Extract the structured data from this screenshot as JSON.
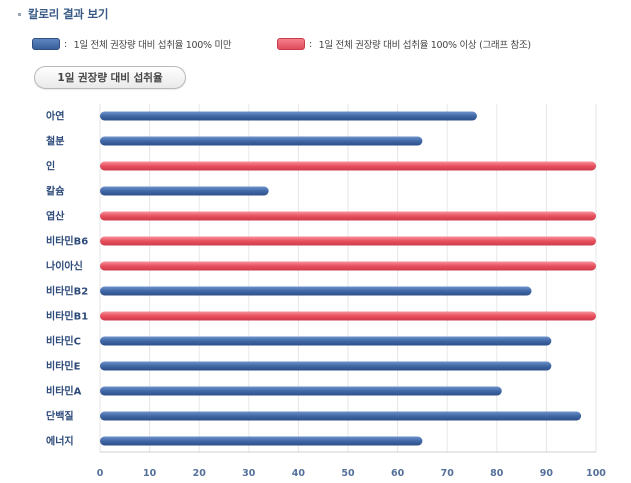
{
  "header": {
    "title": "칼로리 결과 보기"
  },
  "legend": {
    "under": "1일 전체 권장량 대비 섭취율 100% 미만",
    "over": "1일 전체 권장량 대비 섭취율 100% 이상 (그래프 참조)",
    "prefix": ": "
  },
  "tab": {
    "label": "1일 권장량 대비 섭취율"
  },
  "colors": {
    "under": "#3f64a0",
    "over": "#e8505f",
    "grid": "#e6e6e6"
  },
  "chart_data": {
    "type": "bar",
    "orientation": "horizontal",
    "categories": [
      "아연",
      "철분",
      "인",
      "칼슘",
      "엽산",
      "비타민B6",
      "나이아신",
      "비타민B2",
      "비타민B1",
      "비타민C",
      "비타민E",
      "비타민A",
      "단백질",
      "에너지"
    ],
    "values": [
      76,
      65,
      100,
      34,
      100,
      100,
      100,
      87,
      100,
      91,
      91,
      81,
      97,
      65
    ],
    "xlim": [
      0,
      100
    ],
    "xticks": [
      0,
      10,
      20,
      30,
      40,
      50,
      60,
      70,
      80,
      90,
      100
    ],
    "title": "",
    "xlabel": "",
    "ylabel": "",
    "grid": true
  }
}
